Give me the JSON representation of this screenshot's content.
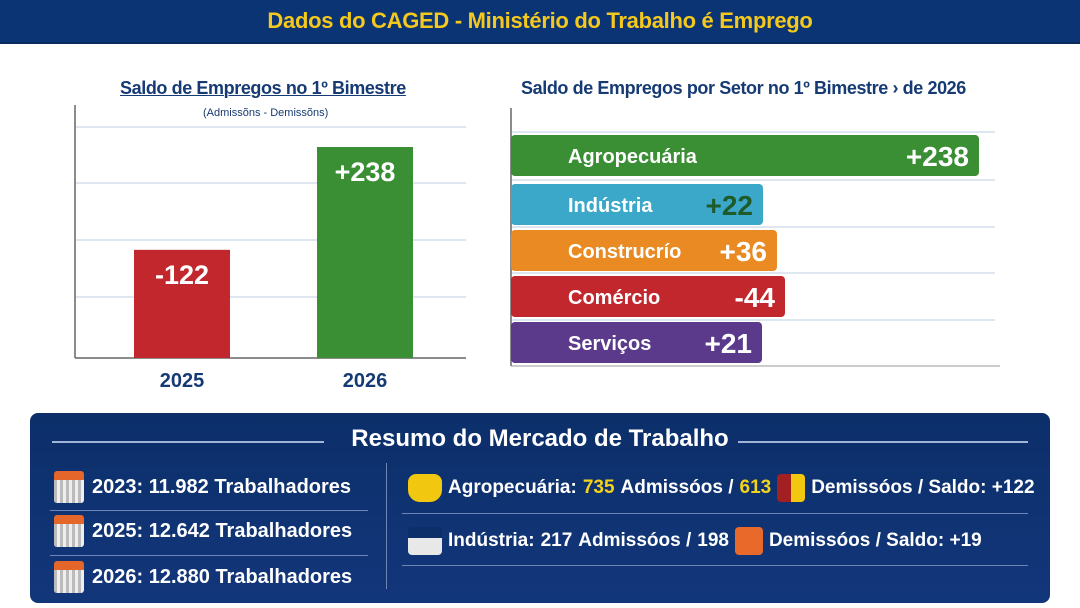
{
  "header": {
    "title": "Dados do CAGED - Ministério do Trabalho é Emprego"
  },
  "chart_data": [
    {
      "type": "bar",
      "title": "Saldo de Empregos no 1º Bimestre",
      "subtitle": "(Admissõns - Demissõns)",
      "categories": [
        "2025",
        "2026"
      ],
      "values": [
        -122,
        238
      ],
      "labels": [
        "-122",
        "+238"
      ],
      "colors": [
        "#c1272d",
        "#3a8f34"
      ],
      "grid": true
    },
    {
      "type": "bar",
      "orientation": "horizontal",
      "title": "Saldo de Empregos por Setor no 1º Bimestre › de 2026",
      "categories": [
        "Agropecuária",
        "Indústria",
        "Construcrío",
        "Comércio",
        "Serviços"
      ],
      "values": [
        238,
        22,
        36,
        -44,
        21
      ],
      "labels": [
        "+238",
        "+22",
        "+36",
        "-44",
        "+21"
      ],
      "colors": [
        "#3a8f34",
        "#3ba8c9",
        "#e98a22",
        "#c1272d",
        "#5b3a8b"
      ],
      "grid": true
    }
  ],
  "summary": {
    "title": "Resumo do Mercado de Trabalho",
    "years": [
      {
        "text": "2023: 11.982 Trabalhadores",
        "icon": "calendar-icon"
      },
      {
        "text": "2025: 12.642 Trabalhadores",
        "icon": "calendar-icon"
      },
      {
        "text": "2026: 12.880 Trabalhadores",
        "icon": "calendar-icon"
      }
    ],
    "sectors": [
      {
        "label": "Agropecuária:",
        "adm": "735",
        "adm_label": "Admissóos /",
        "dem": "613",
        "dem_label": "Demissóos / Saldo: +122",
        "icon": "tractor-icon"
      },
      {
        "label": "Indústria:",
        "adm": "217",
        "adm_label": "Admissóos /",
        "dem": "198",
        "dem_label": "Demissóos / Saldo: +19",
        "icon": "factory-icon"
      }
    ]
  }
}
